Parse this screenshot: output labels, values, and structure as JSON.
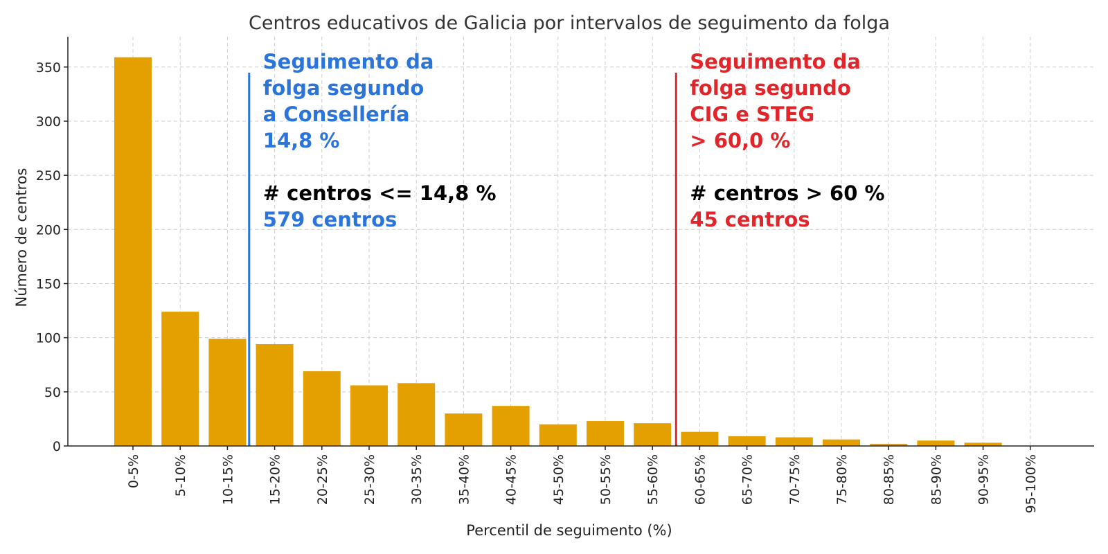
{
  "chart_data": {
    "type": "bar",
    "title": "Centros educativos de Galicia por intervalos de seguimento da folga",
    "xlabel": "Percentil de seguimento (%)",
    "ylabel": "Número de centros",
    "ylim": [
      0,
      378
    ],
    "yticks": [
      0,
      50,
      100,
      150,
      200,
      250,
      300,
      350
    ],
    "grid": true,
    "categories": [
      "0-5%",
      "5-10%",
      "10-15%",
      "15-20%",
      "20-25%",
      "25-30%",
      "30-35%",
      "35-40%",
      "40-45%",
      "45-50%",
      "50-55%",
      "55-60%",
      "60-65%",
      "65-70%",
      "70-75%",
      "75-80%",
      "80-85%",
      "85-90%",
      "90-95%",
      "95-100%"
    ],
    "values": [
      359,
      124,
      99,
      94,
      69,
      56,
      58,
      30,
      37,
      20,
      23,
      21,
      13,
      9,
      8,
      6,
      2,
      5,
      3,
      0
    ],
    "bar_color": "#E3A000",
    "reference_lines": [
      {
        "value": 14.8,
        "color": "#2B74D9",
        "lines": [
          {
            "text": "Seguimento da",
            "color": "#2B74D9"
          },
          {
            "text": "folga segundo",
            "color": "#2B74D9"
          },
          {
            "text": "a Consellería",
            "color": "#2B74D9"
          },
          {
            "text": "14,8 %",
            "color": "#2B74D9"
          },
          {
            "text": "",
            "color": "#000000"
          },
          {
            "text": "# centros <= 14,8 %",
            "color": "#000000"
          },
          {
            "text": "579 centros",
            "color": "#2B74D9"
          }
        ]
      },
      {
        "value": 60.0,
        "color": "#E0262A",
        "lines": [
          {
            "text": "Seguimento da",
            "color": "#E0262A"
          },
          {
            "text": "folga segundo",
            "color": "#E0262A"
          },
          {
            "text": "CIG e STEG",
            "color": "#E0262A"
          },
          {
            "text": "> 60,0 %",
            "color": "#E0262A"
          },
          {
            "text": "",
            "color": "#000000"
          },
          {
            "text": "# centros > 60 %",
            "color": "#000000"
          },
          {
            "text": "45 centros",
            "color": "#E0262A"
          }
        ]
      }
    ]
  }
}
